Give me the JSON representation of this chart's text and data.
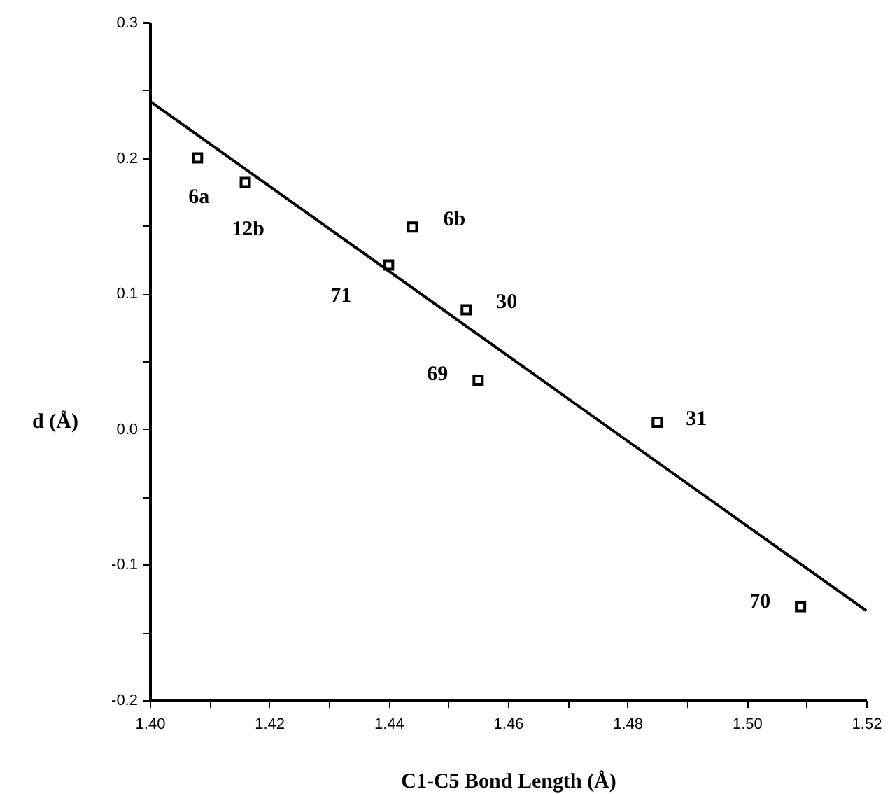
{
  "chart_data": {
    "type": "scatter",
    "xlabel": "C1-C5 Bond Length (Å)",
    "ylabel": "d (Å)",
    "xlim": [
      1.4,
      1.52
    ],
    "ylim": [
      -0.2,
      0.3
    ],
    "xticks": [
      {
        "value": 1.4,
        "label": "1.40"
      },
      {
        "value": 1.41,
        "label": null
      },
      {
        "value": 1.42,
        "label": "1.42"
      },
      {
        "value": 1.43,
        "label": null
      },
      {
        "value": 1.44,
        "label": "1.44"
      },
      {
        "value": 1.45,
        "label": null
      },
      {
        "value": 1.46,
        "label": "1.46"
      },
      {
        "value": 1.47,
        "label": null
      },
      {
        "value": 1.48,
        "label": "1.48"
      },
      {
        "value": 1.49,
        "label": null
      },
      {
        "value": 1.5,
        "label": "1.50"
      },
      {
        "value": 1.51,
        "label": null
      },
      {
        "value": 1.52,
        "label": "1.52"
      }
    ],
    "yticks": [
      {
        "value": -0.2,
        "label": "-0.2"
      },
      {
        "value": -0.15,
        "label": null
      },
      {
        "value": -0.1,
        "label": "-0.1"
      },
      {
        "value": -0.05,
        "label": null
      },
      {
        "value": 0,
        "label": "0.0"
      },
      {
        "value": 0.05,
        "label": null
      },
      {
        "value": 0.1,
        "label": "0.1"
      },
      {
        "value": 0.15,
        "label": null
      },
      {
        "value": 0.2,
        "label": "0.2"
      },
      {
        "value": 0.25,
        "label": null
      },
      {
        "value": 0.3,
        "label": "0.3"
      }
    ],
    "grid": false,
    "series": [
      {
        "color": "#000000",
        "marker": "square",
        "x": [
          1.408,
          1.416,
          1.44,
          1.444,
          1.453,
          1.455,
          1.485,
          1.509
        ],
        "values": [
          0.2,
          0.182,
          0.121,
          0.149,
          0.088,
          0.036,
          0.005,
          -0.131
        ]
      },
      {
        "type": "line",
        "color": "#000000",
        "marker": "none",
        "line_style": "solid",
        "x": [
          1.4,
          1.52
        ],
        "values": [
          0.242,
          -0.134
        ]
      }
    ],
    "annotations": [
      {
        "text": "6a",
        "x": 1.408,
        "y": 0.2
      },
      {
        "text": "12b",
        "x": 1.416,
        "y": 0.182
      },
      {
        "text": "71",
        "x": 1.44,
        "y": 0.121
      },
      {
        "text": "6b",
        "x": 1.444,
        "y": 0.149
      },
      {
        "text": "30",
        "x": 1.453,
        "y": 0.088
      },
      {
        "text": "69",
        "x": 1.455,
        "y": 0.036
      },
      {
        "text": "31",
        "x": 1.485,
        "y": 0.005
      },
      {
        "text": "70",
        "x": 1.509,
        "y": -0.131
      }
    ]
  }
}
